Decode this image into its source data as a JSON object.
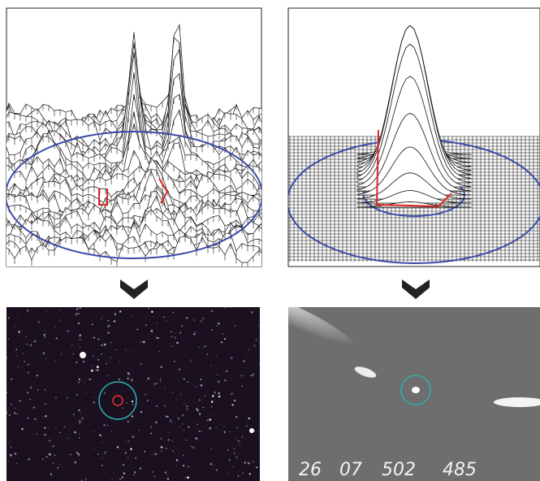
{
  "bottom_right_image": {
    "overlay_text": [
      "26",
      "07",
      "502",
      "485"
    ]
  }
}
